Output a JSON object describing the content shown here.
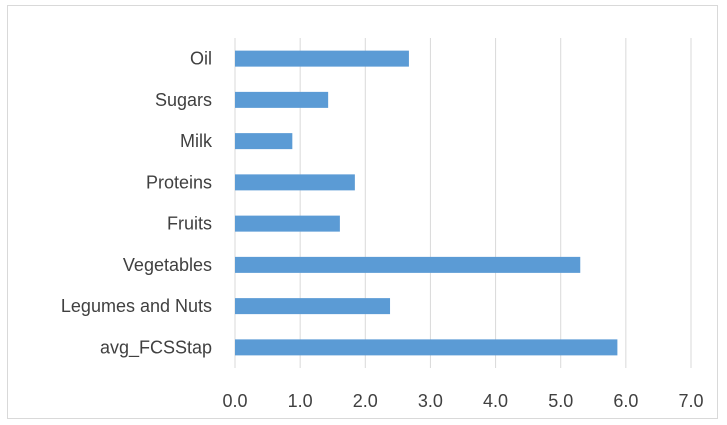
{
  "chart_data": {
    "type": "bar",
    "orientation": "horizontal",
    "title": "",
    "xlabel": "",
    "ylabel": "",
    "categories": [
      "Oil",
      "Sugars",
      "Milk",
      "Proteins",
      "Fruits",
      "Vegetables",
      "Legumes and Nuts",
      "avg_FCSStap"
    ],
    "values": [
      2.67,
      1.43,
      0.88,
      1.84,
      1.61,
      5.3,
      2.38,
      5.87
    ],
    "xlim": [
      0,
      7
    ],
    "xticks": [
      "0.0",
      "1.0",
      "2.0",
      "3.0",
      "4.0",
      "5.0",
      "6.0",
      "7.0"
    ],
    "grid": "vertical",
    "legend": "none",
    "bar_color": "#5b9bd5",
    "grid_color": "#d9d9d9",
    "text_color": "#404040"
  }
}
